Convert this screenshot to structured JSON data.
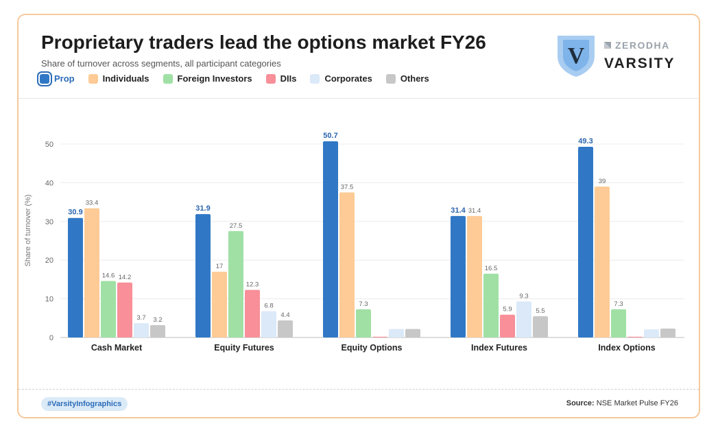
{
  "header": {
    "title": "Proprietary traders lead the options market FY26",
    "subtitle": "Share of turnover across segments, all participant categories"
  },
  "brand": {
    "zerodha": "ZERODHA",
    "varsity": "VARSITY",
    "shield_letter": "V"
  },
  "footer": {
    "hashtag": "#VarsityInfographics",
    "source_label": "Source:",
    "source_text": "NSE Market Pulse FY26"
  },
  "chart_data": {
    "type": "bar",
    "ylabel": "Share of turnover (%)",
    "xlabel": "",
    "ylim": [
      0,
      50
    ],
    "yticks": [
      0,
      10,
      20,
      30,
      40,
      50
    ],
    "grid": true,
    "legend_position": "top-left",
    "categories": [
      "Cash Market",
      "Equity Futures",
      "Equity Options",
      "Index Futures",
      "Index Options"
    ],
    "series": [
      {
        "name": "Prop",
        "color": "#3078c6",
        "values": [
          30.9,
          31.9,
          50.7,
          31.4,
          49.3
        ],
        "labels": [
          "30.9",
          "31.9",
          "50.7",
          "31.4",
          "49.3"
        ],
        "highlight": true
      },
      {
        "name": "Individuals",
        "color": "#fecb96",
        "values": [
          33.4,
          17,
          37.5,
          31.4,
          39
        ],
        "labels": [
          "33.4",
          "17",
          "37.5",
          "31.4",
          "39"
        ]
      },
      {
        "name": "Foreign Investors",
        "color": "#a0e0a4",
        "values": [
          14.6,
          27.5,
          7.3,
          16.5,
          7.3
        ],
        "labels": [
          "14.6",
          "27.5",
          "7.3",
          "16.5",
          "7.3"
        ]
      },
      {
        "name": "DIIs",
        "color": "#f88f99",
        "values": [
          14.2,
          12.3,
          0.2,
          5.9,
          0.2
        ],
        "labels": [
          "14.2",
          "12.3",
          "",
          "5.9",
          ""
        ]
      },
      {
        "name": "Corporates",
        "color": "#dbe9f8",
        "values": [
          3.7,
          6.8,
          2.2,
          9.3,
          2.1
        ],
        "labels": [
          "3.7",
          "6.8",
          "",
          "9.3",
          ""
        ]
      },
      {
        "name": "Others",
        "color": "#c7c7c7",
        "values": [
          3.2,
          4.4,
          2.2,
          5.5,
          2.3
        ],
        "labels": [
          "3.2",
          "4.4",
          "",
          "5.5",
          ""
        ]
      }
    ]
  }
}
